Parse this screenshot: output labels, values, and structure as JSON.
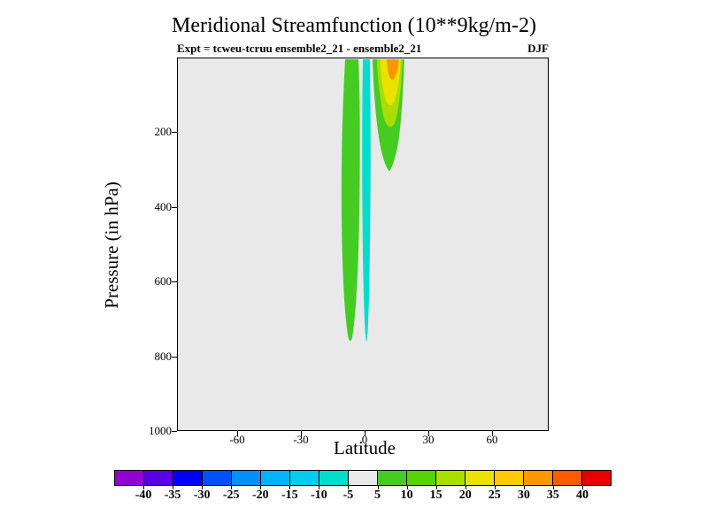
{
  "figure": {
    "background": "#ffffff"
  },
  "title": "Meridional Streamfunction (10**9kg/m-2)",
  "header": {
    "experiment": "Expt = tcweu-tcruu ensemble2_21 - ensemble2_21",
    "season": "DJF"
  },
  "axes": {
    "x_label": "Latitude",
    "y_label": "Pressure (in hPa)",
    "x_ticks": [
      "-60",
      "-30",
      "0",
      "30",
      "60"
    ],
    "y_ticks": [
      "200",
      "400",
      "600",
      "800",
      "1000"
    ]
  },
  "chart_data": {
    "type": "contour",
    "title": "Meridional Streamfunction (10**9kg/m-2)",
    "units": "10**9 kg/m-2",
    "experiment": "tcweu-tcruu ensemble2_21 - ensemble2_21",
    "season": "DJF",
    "xlabel": "Latitude",
    "ylabel": "Pressure (in hPa)",
    "x_range_lat": [
      -88,
      87
    ],
    "y_range_hpa": [
      0,
      1000
    ],
    "contour_levels": [
      -40,
      -35,
      -30,
      -25,
      -20,
      -15,
      -10,
      -5,
      5,
      10,
      15,
      20,
      25,
      30,
      35,
      40
    ],
    "colors": [
      "#9400d3",
      "#5a00e6",
      "#0000f5",
      "#0050ff",
      "#0090ff",
      "#00b4ff",
      "#00ccee",
      "#00ddcc",
      "#e9e9e9",
      "#44cc22",
      "#55d400",
      "#aadd00",
      "#e8e300",
      "#ffc800",
      "#ff9600",
      "#ff5a00",
      "#e60000"
    ],
    "background_band": {
      "value_range": "-5 to 5",
      "color_index": 8
    },
    "features": [
      {
        "name": "green-band-south",
        "value_range": "5 to 10",
        "lat_range": "-10 to -2",
        "pressure_range": "20 to 760 hPa"
      },
      {
        "name": "cyan-band-equatorial",
        "value_range": "-10 to -5",
        "lat_range": "-1 to 3",
        "pressure_range": "20 to 770 hPa"
      },
      {
        "name": "green-region-north",
        "value_range": "5 to 10",
        "lat_range": "4 to 18",
        "pressure_range": "20 to 300 hPa"
      },
      {
        "name": "yellow-green-patch",
        "value_range": "15 to 20",
        "lat_range": "6 to 17",
        "pressure_range": "20 to 200 hPa"
      },
      {
        "name": "yellow-patch",
        "value_range": "20 to 25",
        "lat_range": "8 to 16",
        "pressure_range": "20 to 140 hPa"
      },
      {
        "name": "orange-spot",
        "value_range": "30 to 35",
        "lat_range": "10 to 15",
        "pressure_range": "20 to 70 hPa"
      }
    ],
    "legend_position": "bottom"
  },
  "colorbar": {
    "tick_labels": [
      "-40",
      "-35",
      "-30",
      "-25",
      "-20",
      "-15",
      "-10",
      "-5",
      "5",
      "10",
      "15",
      "20",
      "25",
      "30",
      "35",
      "40"
    ]
  }
}
